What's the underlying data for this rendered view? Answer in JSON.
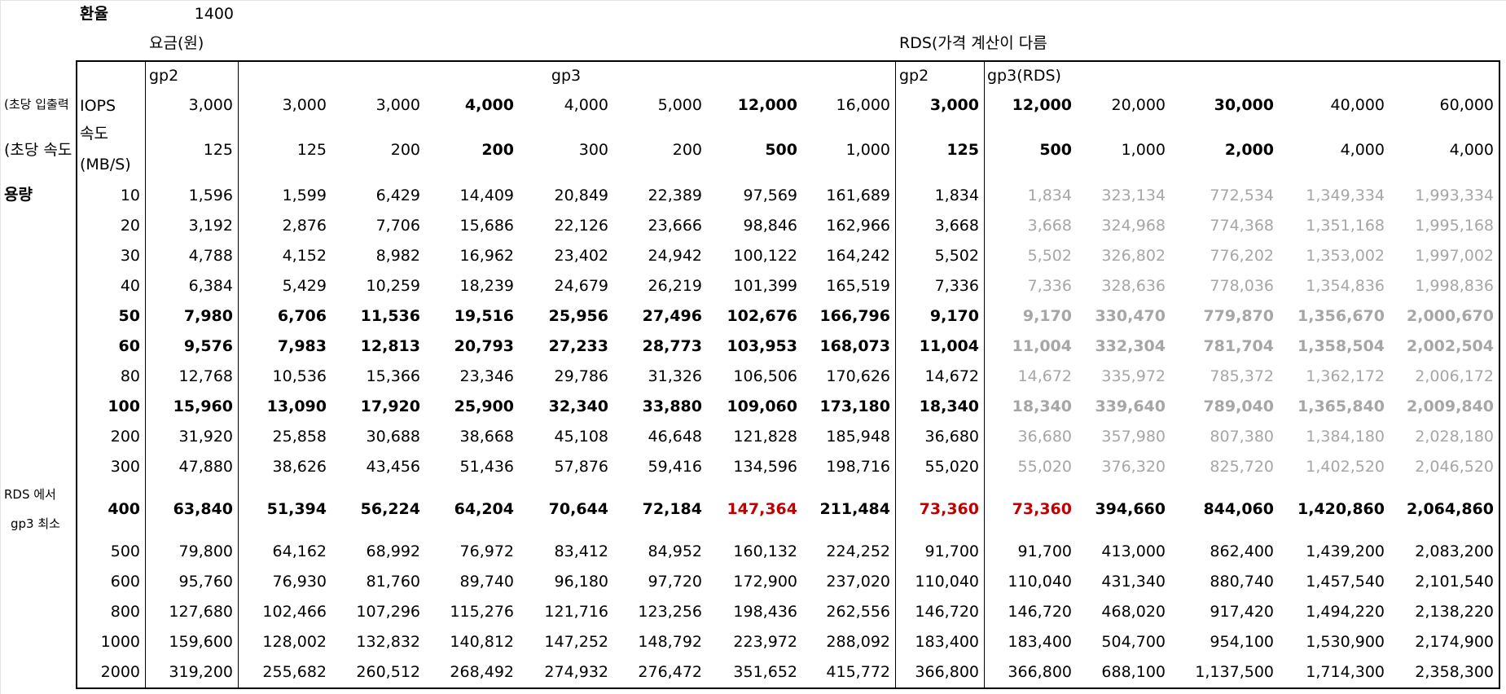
{
  "exchange": {
    "label": "환율",
    "value": "1400"
  },
  "labels": {
    "price_won": "요금(원)",
    "rds_note": "RDS(가격 계산이 다름",
    "iops_side": "(초당 입출력",
    "speed_side": "(초당 속도",
    "iops": "IOPS",
    "speed_top": "속도",
    "speed_unit": "(MB/S)",
    "capacity": "용량",
    "rds_note2_a": "RDS 에서",
    "rds_note2_b": "gp3 최소"
  },
  "groups": {
    "gp2": "gp2",
    "gp3": "gp3",
    "gp2_rds": "gp2",
    "gp3_rds": "gp3(RDS)"
  },
  "iops_row": [
    {
      "v": "3,000",
      "b": false
    },
    {
      "v": "3,000",
      "b": false
    },
    {
      "v": "3,000",
      "b": false
    },
    {
      "v": "4,000",
      "b": true
    },
    {
      "v": "4,000",
      "b": false
    },
    {
      "v": "5,000",
      "b": false
    },
    {
      "v": "12,000",
      "b": true
    },
    {
      "v": "16,000",
      "b": false
    },
    {
      "v": "3,000",
      "b": true
    },
    {
      "v": "12,000",
      "b": true
    },
    {
      "v": "20,000",
      "b": false
    },
    {
      "v": "30,000",
      "b": true
    },
    {
      "v": "40,000",
      "b": false
    },
    {
      "v": "60,000",
      "b": false
    }
  ],
  "speed_row": [
    {
      "v": "125",
      "b": false
    },
    {
      "v": "125",
      "b": false
    },
    {
      "v": "200",
      "b": false
    },
    {
      "v": "200",
      "b": true
    },
    {
      "v": "300",
      "b": false
    },
    {
      "v": "200",
      "b": false
    },
    {
      "v": "500",
      "b": true
    },
    {
      "v": "1,000",
      "b": false
    },
    {
      "v": "125",
      "b": true
    },
    {
      "v": "500",
      "b": true
    },
    {
      "v": "1,000",
      "b": false
    },
    {
      "v": "2,000",
      "b": true
    },
    {
      "v": "4,000",
      "b": false
    },
    {
      "v": "4,000",
      "b": false
    }
  ],
  "rows": [
    {
      "cap": "10",
      "bold": false,
      "gray": true,
      "v": [
        "1,596",
        "1,599",
        "6,429",
        "14,409",
        "20,849",
        "22,389",
        "97,569",
        "161,689",
        "1,834",
        "1,834",
        "323,134",
        "772,534",
        "1,349,334",
        "1,993,334"
      ]
    },
    {
      "cap": "20",
      "bold": false,
      "gray": true,
      "v": [
        "3,192",
        "2,876",
        "7,706",
        "15,686",
        "22,126",
        "23,666",
        "98,846",
        "162,966",
        "3,668",
        "3,668",
        "324,968",
        "774,368",
        "1,351,168",
        "1,995,168"
      ]
    },
    {
      "cap": "30",
      "bold": false,
      "gray": true,
      "v": [
        "4,788",
        "4,152",
        "8,982",
        "16,962",
        "23,402",
        "24,942",
        "100,122",
        "164,242",
        "5,502",
        "5,502",
        "326,802",
        "776,202",
        "1,353,002",
        "1,997,002"
      ]
    },
    {
      "cap": "40",
      "bold": false,
      "gray": true,
      "v": [
        "6,384",
        "5,429",
        "10,259",
        "18,239",
        "24,679",
        "26,219",
        "101,399",
        "165,519",
        "7,336",
        "7,336",
        "328,636",
        "778,036",
        "1,354,836",
        "1,998,836"
      ]
    },
    {
      "cap": "50",
      "bold": true,
      "gray": true,
      "v": [
        "7,980",
        "6,706",
        "11,536",
        "19,516",
        "25,956",
        "27,496",
        "102,676",
        "166,796",
        "9,170",
        "9,170",
        "330,470",
        "779,870",
        "1,356,670",
        "2,000,670"
      ]
    },
    {
      "cap": "60",
      "bold": true,
      "gray": true,
      "v": [
        "9,576",
        "7,983",
        "12,813",
        "20,793",
        "27,233",
        "28,773",
        "103,953",
        "168,073",
        "11,004",
        "11,004",
        "332,304",
        "781,704",
        "1,358,504",
        "2,002,504"
      ]
    },
    {
      "cap": "80",
      "bold": false,
      "gray": true,
      "v": [
        "12,768",
        "10,536",
        "15,366",
        "23,346",
        "29,786",
        "31,326",
        "106,506",
        "170,626",
        "14,672",
        "14,672",
        "335,972",
        "785,372",
        "1,362,172",
        "2,006,172"
      ]
    },
    {
      "cap": "100",
      "bold": true,
      "gray": true,
      "v": [
        "15,960",
        "13,090",
        "17,920",
        "25,900",
        "32,340",
        "33,880",
        "109,060",
        "173,180",
        "18,340",
        "18,340",
        "339,640",
        "789,040",
        "1,365,840",
        "2,009,840"
      ]
    },
    {
      "cap": "200",
      "bold": false,
      "gray": true,
      "v": [
        "31,920",
        "25,858",
        "30,688",
        "38,668",
        "45,108",
        "46,648",
        "121,828",
        "185,948",
        "36,680",
        "36,680",
        "357,980",
        "807,380",
        "1,384,180",
        "2,028,180"
      ]
    },
    {
      "cap": "300",
      "bold": false,
      "gray": true,
      "v": [
        "47,880",
        "38,626",
        "43,456",
        "51,436",
        "57,876",
        "59,416",
        "134,596",
        "198,716",
        "55,020",
        "55,020",
        "376,320",
        "825,720",
        "1,402,520",
        "2,046,520"
      ]
    },
    {
      "cap": "400",
      "bold": true,
      "gray": false,
      "red": [
        6,
        8,
        9
      ],
      "v": [
        "63,840",
        "51,394",
        "56,224",
        "64,204",
        "70,644",
        "72,184",
        "147,364",
        "211,484",
        "73,360",
        "73,360",
        "394,660",
        "844,060",
        "1,420,860",
        "2,064,860"
      ]
    },
    {
      "cap": "500",
      "bold": false,
      "gray": false,
      "v": [
        "79,800",
        "64,162",
        "68,992",
        "76,972",
        "83,412",
        "84,952",
        "160,132",
        "224,252",
        "91,700",
        "91,700",
        "413,000",
        "862,400",
        "1,439,200",
        "2,083,200"
      ]
    },
    {
      "cap": "600",
      "bold": false,
      "gray": false,
      "v": [
        "95,760",
        "76,930",
        "81,760",
        "89,740",
        "96,180",
        "97,720",
        "172,900",
        "237,020",
        "110,040",
        "110,040",
        "431,340",
        "880,740",
        "1,457,540",
        "2,101,540"
      ]
    },
    {
      "cap": "800",
      "bold": false,
      "gray": false,
      "v": [
        "127,680",
        "102,466",
        "107,296",
        "115,276",
        "121,716",
        "123,256",
        "198,436",
        "262,556",
        "146,720",
        "146,720",
        "468,020",
        "917,420",
        "1,494,220",
        "2,138,220"
      ]
    },
    {
      "cap": "1000",
      "bold": false,
      "gray": false,
      "v": [
        "159,600",
        "128,002",
        "132,832",
        "140,812",
        "147,252",
        "148,792",
        "223,972",
        "288,092",
        "183,400",
        "183,400",
        "504,700",
        "954,100",
        "1,530,900",
        "2,174,900"
      ]
    },
    {
      "cap": "2000",
      "bold": false,
      "gray": false,
      "v": [
        "319,200",
        "255,682",
        "260,512",
        "268,492",
        "274,932",
        "276,472",
        "351,652",
        "415,772",
        "366,800",
        "366,800",
        "688,100",
        "1,137,500",
        "1,714,300",
        "2,358,300"
      ]
    }
  ]
}
